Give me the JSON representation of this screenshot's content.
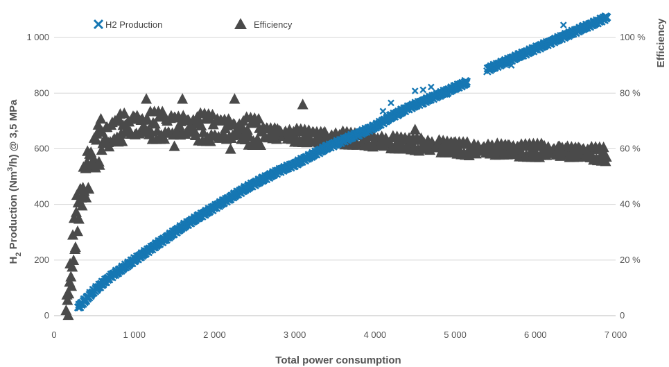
{
  "chart_data": {
    "type": "scatter",
    "xlabel": "Total power consumption",
    "ylabel_parts": [
      "H",
      "2",
      " Production (Nm",
      "3",
      "/h) @ 3,5 MPa"
    ],
    "y2label": "Efficiency",
    "xlim": [
      0,
      7000
    ],
    "ylim": [
      0,
      1100
    ],
    "y2lim": [
      0,
      1.1
    ],
    "grid": true,
    "legend_position": "top-left",
    "x_ticks": [
      "0",
      "1 000",
      "2 000",
      "3 000",
      "4 000",
      "5 000",
      "6 000",
      "7 000"
    ],
    "y_ticks": [
      "0",
      "200",
      "400",
      "600",
      "800",
      "1 000"
    ],
    "y2_ticks": [
      "0",
      "20 %",
      "40 %",
      "60 %",
      "80 %",
      "100 %"
    ],
    "colors": {
      "h2": "#1677b3",
      "efficiency": "#4a4a4a",
      "grid": "#d6d6d6"
    },
    "series": [
      {
        "name": "H2 Production",
        "marker": "x",
        "axis": "left",
        "x": [
          300,
          400,
          500,
          600,
          700,
          800,
          900,
          1000,
          1200,
          1400,
          1600,
          1800,
          2000,
          2200,
          2400,
          2600,
          2800,
          3000,
          3200,
          3400,
          3600,
          3800,
          4000,
          4200,
          4400,
          4600,
          4800,
          5000,
          5150,
          5400,
          5600,
          5800,
          6000,
          6200,
          6400,
          6600,
          6800,
          6900
        ],
        "y": [
          30,
          60,
          90,
          115,
          140,
          160,
          180,
          200,
          240,
          280,
          320,
          355,
          390,
          425,
          460,
          490,
          520,
          545,
          575,
          605,
          630,
          655,
          680,
          715,
          745,
          770,
          795,
          820,
          840,
          885,
          910,
          935,
          960,
          985,
          1010,
          1035,
          1060,
          1075
        ],
        "outliers_x": [
          4100,
          4200,
          4300,
          4500,
          4600,
          4700,
          4900,
          5700,
          6350
        ],
        "outliers_y": [
          735,
          765,
          720,
          808,
          812,
          822,
          795,
          900,
          1045
        ]
      },
      {
        "name": "Efficiency",
        "marker": "triangle",
        "axis": "right",
        "x": [
          150,
          200,
          250,
          300,
          350,
          400,
          450,
          500,
          550,
          600,
          700,
          800,
          900,
          1000,
          1200,
          1400,
          1600,
          1800,
          2000,
          2200,
          2400,
          2600,
          2800,
          3000,
          3200,
          3400,
          3600,
          3800,
          4000,
          4200,
          4400,
          4600,
          4800,
          5000,
          5200,
          5500,
          5800,
          6100,
          6400,
          6700,
          6900
        ],
        "y": [
          0.02,
          0.12,
          0.28,
          0.4,
          0.46,
          0.5,
          0.55,
          0.58,
          0.61,
          0.64,
          0.66,
          0.675,
          0.68,
          0.685,
          0.685,
          0.685,
          0.685,
          0.68,
          0.675,
          0.67,
          0.665,
          0.66,
          0.655,
          0.65,
          0.645,
          0.64,
          0.64,
          0.635,
          0.63,
          0.625,
          0.62,
          0.615,
          0.61,
          0.605,
          0.6,
          0.6,
          0.595,
          0.595,
          0.59,
          0.585,
          0.58
        ],
        "outliers_x": [
          1150,
          1500,
          1600,
          2200,
          2250,
          3100,
          4500,
          6300
        ],
        "outliers_y": [
          0.78,
          0.61,
          0.78,
          0.6,
          0.78,
          0.76,
          0.67,
          0.61
        ]
      }
    ]
  }
}
